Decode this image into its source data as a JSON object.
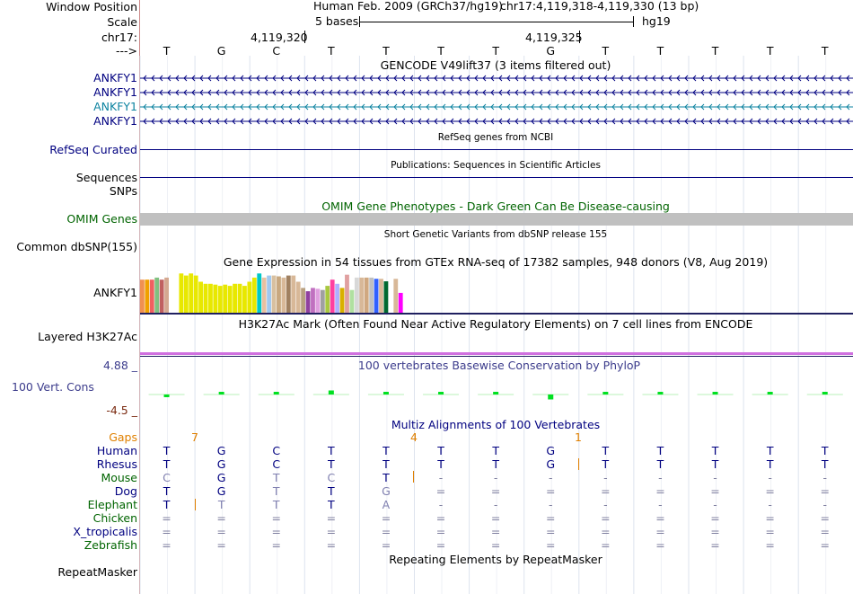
{
  "header": {
    "window_position_label": "Window Position",
    "scale_label": "Scale",
    "chrom_label": "chr17:",
    "arrow_label": "--->",
    "position_text": "Human Feb. 2009 (GRCh37/hg19)",
    "region_text": "chr17:4,119,318-4,119,330 (13 bp)",
    "scale_text": "5 bases",
    "assembly": "hg19",
    "coord1": "4,119,320",
    "coord2": "4,119,325"
  },
  "dna": [
    "T",
    "G",
    "C",
    "T",
    "T",
    "T",
    "T",
    "G",
    "T",
    "T",
    "T",
    "T",
    "T"
  ],
  "tracks": {
    "gencode": {
      "title": "GENCODE V49lift37 (3 items filtered out)",
      "genes": [
        "ANKFY1",
        "ANKFY1",
        "ANKFY1",
        "ANKFY1"
      ]
    },
    "refseq": {
      "label": "RefSeq Curated",
      "title": "RefSeq genes from NCBI"
    },
    "publications": {
      "label": "Sequences",
      "title": "Publications: Sequences in Scientific Articles"
    },
    "snps": {
      "label": "SNPs"
    },
    "omim": {
      "label": "OMIM Genes",
      "title": "OMIM Gene Phenotypes - Dark Green Can Be Disease-causing"
    },
    "dbsnp": {
      "label": "Common dbSNP(155)",
      "title": "Short Genetic Variants from dbSNP release 155"
    },
    "gtex": {
      "label": "ANKFY1",
      "title": "Gene Expression in 54 tissues from GTEx RNA-seq of 17382 samples, 948 donors (V8, Aug 2019)"
    },
    "h3k27ac": {
      "label": "Layered H3K27Ac",
      "title": "H3K27Ac Mark (Often Found Near Active Regulatory Elements) on 7 cell lines from ENCODE"
    },
    "phylop": {
      "label": "100 Vert. Cons",
      "title": "100 vertebrates Basewise Conservation by PhyloP",
      "max": "4.88 _",
      "min": "-4.5 _"
    },
    "multiz": {
      "title": "Multiz Alignments of 100 Vertebrates",
      "gaps_label": "Gaps",
      "gap_counts": [
        "7",
        "4",
        "1"
      ],
      "species": [
        "Human",
        "Rhesus",
        "Mouse",
        "Dog",
        "Elephant",
        "Chicken",
        "X_tropicalis",
        "Zebrafish"
      ]
    },
    "repeatmasker": {
      "label": "RepeatMasker",
      "title": "Repeating Elements by RepeatMasker"
    }
  },
  "chart_data": {
    "type": "bar",
    "title": "Gene Expression in 54 tissues from GTEx RNA-seq of 17382 samples, 948 donors (V8, Aug 2019)",
    "values": [
      0.8,
      0.8,
      0.8,
      0.85,
      0.8,
      0.85,
      0.72,
      0.6,
      0.95,
      0.9,
      0.95,
      0.9,
      0.75,
      0.7,
      0.7,
      0.68,
      0.65,
      0.68,
      0.65,
      0.7,
      0.7,
      0.65,
      0.75,
      0.85,
      0.95,
      0.85,
      0.9,
      0.9,
      0.88,
      0.85,
      0.9,
      0.9,
      0.75,
      0.6,
      0.52,
      0.6,
      0.58,
      0.55,
      0.65,
      0.8,
      0.7,
      0.6,
      0.92,
      0.55,
      0.85,
      0.85,
      0.85,
      0.85,
      0.82,
      0.82,
      0.76,
      0.86,
      0.82,
      0.48
    ],
    "colors": [
      "#f09050",
      "#f0a000",
      "#f06060",
      "#80c080",
      "#c06060",
      "#d4a890",
      "#ffffff",
      "#ffffff",
      "#e8e800",
      "#e8e800",
      "#e8e800",
      "#e8e800",
      "#e8e800",
      "#e8e800",
      "#e8e800",
      "#e8e800",
      "#e8e800",
      "#e8e800",
      "#e8e800",
      "#e8e800",
      "#e8e800",
      "#e8e800",
      "#e8e800",
      "#e8e800",
      "#00c8c8",
      "#e8c0a0",
      "#a0c8f0",
      "#d8c0a0",
      "#c8a880",
      "#d8b898",
      "#a08060",
      "#d8b898",
      "#d8b898",
      "#b8a080",
      "#9040a0",
      "#c070c0",
      "#e0a0e0",
      "#a0a0a0",
      "#a8c840",
      "#ff40a0",
      "#b0b0ff",
      "#d8b000",
      "#e0a0a0",
      "#b0e0a0",
      "#d8d8d8",
      "#d8b898",
      "#d0a880",
      "#c0c0c0",
      "#3060ff",
      "#d8b898",
      "#006830",
      "#ffffff",
      "#d8b898",
      "#ff00ff"
    ]
  },
  "cons_values": [
    -0.3,
    0,
    0.2,
    0.9,
    0,
    0.5,
    0.4,
    -1.1,
    0,
    0.6,
    0.5,
    0.4,
    0.4
  ],
  "alignment": {
    "Human": [
      "T",
      "G",
      "C",
      "T",
      "T",
      "T",
      "T",
      "G",
      "T",
      "T",
      "T",
      "T",
      "T"
    ],
    "Rhesus": [
      "T",
      "G",
      "C",
      "T",
      "T",
      "T",
      "T",
      "G",
      "T",
      "T",
      "T",
      "T",
      "T"
    ],
    "Mouse": [
      "C",
      "G",
      "T",
      "C",
      "T",
      "-",
      "-",
      "-",
      "-",
      "-",
      "-",
      "-",
      "-"
    ],
    "Dog": [
      "T",
      "G",
      "T",
      "T",
      "G",
      "=",
      "=",
      "=",
      "=",
      "=",
      "=",
      "=",
      "="
    ],
    "Elephant": [
      "T",
      "T",
      "T",
      "T",
      "A",
      "-",
      "-",
      "-",
      "-",
      "-",
      "-",
      "-",
      "-"
    ],
    "Chicken": [
      "=",
      "=",
      "=",
      "=",
      "=",
      "=",
      "=",
      "=",
      "=",
      "=",
      "=",
      "=",
      "="
    ],
    "X_tropicalis": [
      "=",
      "=",
      "=",
      "=",
      "=",
      "=",
      "=",
      "=",
      "=",
      "=",
      "=",
      "=",
      "="
    ],
    "Zebrafish": [
      "=",
      "=",
      "=",
      "=",
      "=",
      "=",
      "=",
      "=",
      "=",
      "=",
      "=",
      "=",
      "="
    ]
  },
  "colors": {
    "navy": "#000080",
    "gene_teal": "#0d83a0",
    "omim_gray": "#c0c0c0",
    "gtex_line": "#202060",
    "h3k_line": "#d070e0",
    "cons_green": "#00e020",
    "gap_orange": "#e08000"
  }
}
